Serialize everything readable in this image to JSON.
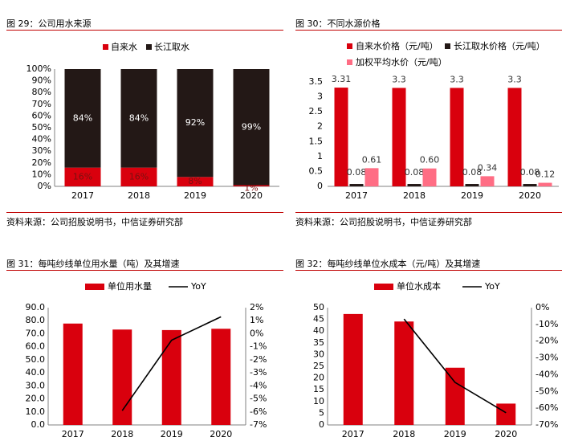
{
  "colors": {
    "red": "#d9000d",
    "black": "#231816",
    "pink": "#ff6d84",
    "line": "#000000",
    "rule": "#c00000"
  },
  "panels": [
    {
      "title": "图 29：公司用水来源",
      "source": "资料来源：公司招股说明书，中信证券研究部"
    },
    {
      "title": "图 30：不同水源价格",
      "source": "资料来源：公司招股说明书，中信证券研究部"
    },
    {
      "title": "图 31：每吨纱线单位用水量（吨）及其增速",
      "source": ""
    },
    {
      "title": "图 32：每吨纱线单位水成本（元/吨）及其增速",
      "source": ""
    }
  ],
  "chart_data": [
    {
      "type": "bar",
      "stacked": true,
      "percent": true,
      "categories": [
        "2017",
        "2018",
        "2019",
        "2020"
      ],
      "series": [
        {
          "name": "自来水",
          "values": [
            16,
            16,
            8,
            1
          ],
          "labels": [
            "16%",
            "16%",
            "8%",
            "1%"
          ],
          "color": "#d9000d"
        },
        {
          "name": "长江取水",
          "values": [
            84,
            84,
            92,
            99
          ],
          "labels": [
            "84%",
            "84%",
            "92%",
            "99%"
          ],
          "color": "#231816"
        }
      ],
      "yticks": [
        "0%",
        "10%",
        "20%",
        "30%",
        "40%",
        "50%",
        "60%",
        "70%",
        "80%",
        "90%",
        "100%"
      ],
      "ylim": [
        0,
        100
      ],
      "legend": "top"
    },
    {
      "type": "bar",
      "categories": [
        "2017",
        "2018",
        "2019",
        "2020"
      ],
      "series": [
        {
          "name": "自来水价格（元/吨）",
          "values": [
            3.31,
            3.3,
            3.3,
            3.3
          ],
          "labels": [
            "3.31",
            "3.3",
            "3.3",
            "3.3"
          ],
          "color": "#d9000d"
        },
        {
          "name": "长江取水价格（元/吨）",
          "values": [
            0.08,
            0.08,
            0.08,
            0.08
          ],
          "labels": [
            "0.08",
            "0.08",
            "0.08",
            "0.08"
          ],
          "color": "#231816"
        },
        {
          "name": "加权平均水价（元/吨）",
          "values": [
            0.61,
            0.6,
            0.34,
            0.12
          ],
          "labels": [
            "0.61",
            "0.60",
            "0.34",
            "0.12"
          ],
          "color": "#ff6d84"
        }
      ],
      "yticks": [
        "0",
        "0.5",
        "1",
        "1.5",
        "2",
        "2.5",
        "3",
        "3.5"
      ],
      "ylim": [
        0,
        3.5
      ],
      "legend": "top"
    },
    {
      "type": "bar",
      "categories": [
        "2017",
        "2018",
        "2019",
        "2020"
      ],
      "series": [
        {
          "name": "单位用水量",
          "values": [
            77.8,
            73.2,
            72.8,
            73.8
          ],
          "color": "#d9000d",
          "axis": "left"
        },
        {
          "name": "YoY",
          "values": [
            null,
            -5.9,
            -0.5,
            1.3
          ],
          "color": "#000000",
          "axis": "right",
          "kind": "line"
        }
      ],
      "yticks": [
        "0.0",
        "10.0",
        "20.0",
        "30.0",
        "40.0",
        "50.0",
        "60.0",
        "70.0",
        "80.0",
        "90.0"
      ],
      "ylim": [
        0,
        90
      ],
      "y2ticks": [
        "-7%",
        "-6%",
        "-5%",
        "-4%",
        "-3%",
        "-2%",
        "-1%",
        "0%",
        "1%",
        "2%"
      ],
      "y2lim": [
        -7,
        2
      ],
      "legend": "top"
    },
    {
      "type": "bar",
      "categories": [
        "2017",
        "2018",
        "2019",
        "2020"
      ],
      "series": [
        {
          "name": "单位水成本",
          "values": [
            47.3,
            44.1,
            24.4,
            9.1
          ],
          "color": "#d9000d",
          "axis": "left"
        },
        {
          "name": "YoY",
          "values": [
            null,
            -6.8,
            -44.6,
            -62.7
          ],
          "color": "#000000",
          "axis": "right",
          "kind": "line"
        }
      ],
      "yticks": [
        "0",
        "5",
        "10",
        "15",
        "20",
        "25",
        "30",
        "35",
        "40",
        "45",
        "50"
      ],
      "ylim": [
        0,
        50
      ],
      "y2ticks": [
        "-70%",
        "-60%",
        "-50%",
        "-40%",
        "-30%",
        "-20%",
        "-10%",
        "0%"
      ],
      "y2lim": [
        -70,
        0
      ],
      "legend": "top"
    }
  ]
}
